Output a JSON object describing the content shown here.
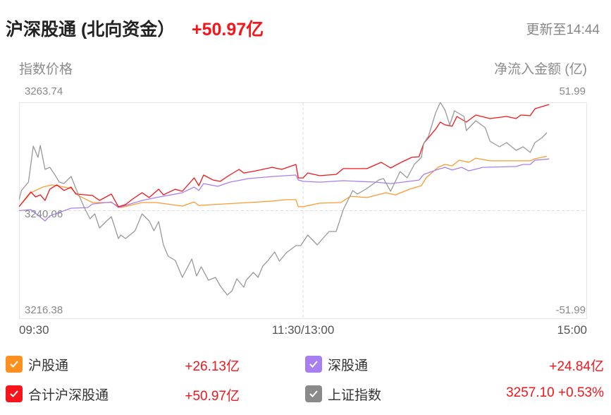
{
  "header": {
    "title": "沪深股通 (北向资金）",
    "value": "+50.97亿",
    "update": "更新至14:44"
  },
  "chart_data": {
    "type": "line",
    "left_axis_title": "指数价格",
    "right_axis_title": "净流入金额 (亿)",
    "left_ticks": [
      "3263.74",
      "3240.06",
      "3216.38"
    ],
    "right_ticks": [
      "51.99",
      "-51.99"
    ],
    "x_ticks": [
      "09:30",
      "11:30/13:00",
      "15:00"
    ],
    "left_ylim": [
      3216.38,
      3263.74
    ],
    "right_ylim": [
      -51.99,
      51.99
    ],
    "x_sessions": [
      [
        "09:30",
        "11:30"
      ],
      [
        "13:00",
        "15:00"
      ]
    ],
    "grid": "center dashed lines",
    "series": [
      {
        "name": "沪股通",
        "axis": "right",
        "color": "#ff9a2e",
        "points": [
          [
            "09:30",
            1.9
          ],
          [
            "09:35",
            8.6
          ],
          [
            "09:40",
            11.3
          ],
          [
            "09:44",
            12.4
          ],
          [
            "09:52",
            10.7
          ],
          [
            "09:55",
            7.3
          ],
          [
            "10:01",
            3.9
          ],
          [
            "10:09",
            3.9
          ],
          [
            "10:13",
            1.5
          ],
          [
            "10:22",
            3.9
          ],
          [
            "10:28",
            3.9
          ],
          [
            "10:39",
            2.2
          ],
          [
            "10:44",
            4.2
          ],
          [
            "10:46",
            2.5
          ],
          [
            "10:52",
            2.9
          ],
          [
            "11:07",
            3.9
          ],
          [
            "11:17",
            4.6
          ],
          [
            "11:23",
            5.3
          ],
          [
            "11:27",
            5.3
          ],
          [
            "11:28",
            1.9
          ],
          [
            "13:00",
            1.9
          ],
          [
            "13:07",
            3.6
          ],
          [
            "13:16",
            3.9
          ],
          [
            "13:20",
            6.9
          ],
          [
            "13:27",
            6.3
          ],
          [
            "13:35",
            8.6
          ],
          [
            "13:39",
            7.6
          ],
          [
            "13:45",
            10.3
          ],
          [
            "13:50",
            12.0
          ],
          [
            "13:52",
            15.7
          ],
          [
            "13:57",
            20.8
          ],
          [
            "14:00",
            22.2
          ],
          [
            "14:03",
            21.5
          ],
          [
            "14:06",
            24.2
          ],
          [
            "14:10",
            23.2
          ],
          [
            "14:13",
            25.2
          ],
          [
            "14:19",
            23.9
          ],
          [
            "14:30",
            23.9
          ],
          [
            "14:36",
            23.9
          ],
          [
            "14:38",
            24.9
          ],
          [
            "14:43",
            26.13
          ]
        ]
      },
      {
        "name": "深股通",
        "axis": "right",
        "color": "#a77ff0",
        "points": [
          [
            "09:30",
            0
          ],
          [
            "09:35",
            0.5
          ],
          [
            "09:41",
            -4.9
          ],
          [
            "09:43",
            -2.5
          ],
          [
            "09:52",
            1.2
          ],
          [
            "09:59",
            1.5
          ],
          [
            "10:01",
            3.2
          ],
          [
            "10:09",
            4.2
          ],
          [
            "10:12",
            1.5
          ],
          [
            "10:22",
            4.9
          ],
          [
            "10:28",
            6.3
          ],
          [
            "10:39",
            8.6
          ],
          [
            "10:44",
            11.3
          ],
          [
            "10:46",
            9.7
          ],
          [
            "10:48",
            13.0
          ],
          [
            "10:54",
            11.7
          ],
          [
            "10:59",
            13.7
          ],
          [
            "11:07",
            15.4
          ],
          [
            "11:17",
            16.4
          ],
          [
            "11:27",
            17.1
          ],
          [
            "11:28",
            14.7
          ],
          [
            "13:00",
            14.1
          ],
          [
            "13:07",
            13.7
          ],
          [
            "13:17",
            14.4
          ],
          [
            "13:31",
            13.7
          ],
          [
            "13:37",
            13.0
          ],
          [
            "13:45",
            14.1
          ],
          [
            "13:49",
            14.7
          ],
          [
            "13:51",
            17.4
          ],
          [
            "13:57",
            19.8
          ],
          [
            "14:00",
            20.8
          ],
          [
            "14:03",
            19.5
          ],
          [
            "14:07",
            20.8
          ],
          [
            "14:10",
            19.1
          ],
          [
            "14:16",
            20.8
          ],
          [
            "14:30",
            21.2
          ],
          [
            "14:33",
            22.2
          ],
          [
            "14:36",
            22.2
          ],
          [
            "14:38",
            24.2
          ],
          [
            "14:44",
            24.84
          ]
        ]
      },
      {
        "name": "合计沪深股通",
        "axis": "right",
        "color": "#f5151b",
        "points": [
          [
            "09:30",
            1.9
          ],
          [
            "09:35",
            9.0
          ],
          [
            "09:37",
            6.6
          ],
          [
            "09:39",
            7.6
          ],
          [
            "09:41",
            4.9
          ],
          [
            "09:43",
            10.3
          ],
          [
            "09:46",
            12.4
          ],
          [
            "09:49",
            9.7
          ],
          [
            "09:52",
            11.3
          ],
          [
            "09:54",
            8.0
          ],
          [
            "10:01",
            7.3
          ],
          [
            "10:04",
            4.9
          ],
          [
            "10:09",
            8.0
          ],
          [
            "10:12",
            1.9
          ],
          [
            "10:15",
            2.9
          ],
          [
            "10:18",
            5.6
          ],
          [
            "10:22",
            8.6
          ],
          [
            "10:25",
            6.3
          ],
          [
            "10:29",
            10.3
          ],
          [
            "10:31",
            7.6
          ],
          [
            "10:36",
            10.3
          ],
          [
            "10:39",
            9.3
          ],
          [
            "10:44",
            15.7
          ],
          [
            "10:46",
            12.0
          ],
          [
            "10:48",
            17.1
          ],
          [
            "10:52",
            14.7
          ],
          [
            "10:55",
            14.1
          ],
          [
            "10:59",
            17.1
          ],
          [
            "11:03",
            19.8
          ],
          [
            "11:05",
            18.1
          ],
          [
            "11:10",
            19.1
          ],
          [
            "11:17",
            20.8
          ],
          [
            "11:21",
            19.8
          ],
          [
            "11:27",
            22.2
          ],
          [
            "11:28",
            15.7
          ],
          [
            "13:00",
            15.7
          ],
          [
            "13:02",
            18.1
          ],
          [
            "13:07",
            16.8
          ],
          [
            "13:14",
            17.4
          ],
          [
            "13:17",
            20.2
          ],
          [
            "13:27",
            20.2
          ],
          [
            "13:33",
            23.2
          ],
          [
            "13:37",
            20.5
          ],
          [
            "13:42",
            23.5
          ],
          [
            "13:46",
            25.6
          ],
          [
            "13:49",
            25.9
          ],
          [
            "13:51",
            32.3
          ],
          [
            "13:56",
            39.1
          ],
          [
            "13:58",
            42.5
          ],
          [
            "14:00",
            41.2
          ],
          [
            "14:03",
            40.5
          ],
          [
            "14:05",
            45.2
          ],
          [
            "14:09",
            42.5
          ],
          [
            "14:13",
            45.9
          ],
          [
            "14:19",
            44.2
          ],
          [
            "14:26",
            45.2
          ],
          [
            "14:30",
            44.2
          ],
          [
            "14:32",
            45.9
          ],
          [
            "14:36",
            45.6
          ],
          [
            "14:38",
            48.9
          ],
          [
            "14:44",
            50.97
          ]
        ]
      },
      {
        "name": "上证指数",
        "axis": "left",
        "color": "#999999",
        "points": [
          [
            "09:30",
            3242.45
          ],
          [
            "09:31",
            3244.46
          ],
          [
            "09:34",
            3246.31
          ],
          [
            "09:36",
            3254.18
          ],
          [
            "09:38",
            3251.71
          ],
          [
            "09:39",
            3254.33
          ],
          [
            "09:41",
            3249.09
          ],
          [
            "09:43",
            3249.55
          ],
          [
            "09:45",
            3248.01
          ],
          [
            "09:47",
            3246.31
          ],
          [
            "09:49",
            3246.0
          ],
          [
            "09:52",
            3247.54
          ],
          [
            "09:54",
            3244.92
          ],
          [
            "09:58",
            3240.29
          ],
          [
            "10:00",
            3238.28
          ],
          [
            "10:02",
            3239.36
          ],
          [
            "10:04",
            3236.28
          ],
          [
            "10:07",
            3237.82
          ],
          [
            "10:09",
            3238.75
          ],
          [
            "10:12",
            3233.96
          ],
          [
            "10:13",
            3234.74
          ],
          [
            "10:15",
            3233.96
          ],
          [
            "10:19",
            3235.66
          ],
          [
            "10:22",
            3239.36
          ],
          [
            "10:25",
            3237.82
          ],
          [
            "10:27",
            3235.66
          ],
          [
            "10:29",
            3237.67
          ],
          [
            "10:31",
            3232.58
          ],
          [
            "10:33",
            3230.11
          ],
          [
            "10:36",
            3229.18
          ],
          [
            "10:39",
            3225.48
          ],
          [
            "10:43",
            3229.49
          ],
          [
            "10:45",
            3225.79
          ],
          [
            "10:47",
            3227.79
          ],
          [
            "10:50",
            3224.86
          ],
          [
            "10:53",
            3225.48
          ],
          [
            "10:55",
            3223.63
          ],
          [
            "10:58",
            3221.62
          ],
          [
            "11:00",
            3222.55
          ],
          [
            "11:02",
            3225.17
          ],
          [
            "11:05",
            3223.32
          ],
          [
            "11:06",
            3224.86
          ],
          [
            "11:09",
            3226.56
          ],
          [
            "11:11",
            3225.48
          ],
          [
            "11:13",
            3227.95
          ],
          [
            "11:15",
            3229.03
          ],
          [
            "11:18",
            3231.03
          ],
          [
            "11:20",
            3229.03
          ],
          [
            "11:23",
            3230.88
          ],
          [
            "11:27",
            3232.42
          ],
          [
            "11:29",
            3232.42
          ],
          [
            "13:02",
            3234.74
          ],
          [
            "13:06",
            3232.58
          ],
          [
            "13:11",
            3235.51
          ],
          [
            "13:14",
            3235.51
          ],
          [
            "13:17",
            3240.29
          ],
          [
            "13:21",
            3244.46
          ],
          [
            "13:23",
            3243.69
          ],
          [
            "13:27",
            3244.92
          ],
          [
            "13:32",
            3246.77
          ],
          [
            "13:34",
            3247.08
          ],
          [
            "13:37",
            3244.3
          ],
          [
            "13:41",
            3248.62
          ],
          [
            "13:44",
            3247.24
          ],
          [
            "13:47",
            3250.17
          ],
          [
            "13:50",
            3251.71
          ],
          [
            "13:51",
            3254.79
          ],
          [
            "13:53",
            3256.34
          ],
          [
            "13:56",
            3261.43
          ],
          [
            "13:58",
            3263.74
          ],
          [
            "14:00",
            3262.05
          ],
          [
            "14:02",
            3258.81
          ],
          [
            "14:04",
            3261.89
          ],
          [
            "14:08",
            3260.66
          ],
          [
            "14:09",
            3257.57
          ],
          [
            "14:13",
            3259.73
          ],
          [
            "14:17",
            3258.19
          ],
          [
            "14:19",
            3255.26
          ],
          [
            "14:23",
            3254.02
          ],
          [
            "14:26",
            3254.95
          ],
          [
            "14:30",
            3253.25
          ],
          [
            "14:33",
            3254.02
          ],
          [
            "14:36",
            3252.79
          ],
          [
            "14:38",
            3254.95
          ],
          [
            "14:41",
            3256.03
          ],
          [
            "14:43",
            3257.1
          ]
        ]
      }
    ]
  },
  "legend": [
    {
      "label": "沪股通",
      "value": "+26.13亿",
      "color": "#ff8f1f",
      "checked": true
    },
    {
      "label": "深股通",
      "value": "+24.84亿",
      "color": "#a77ff0",
      "checked": true
    },
    {
      "label": "合计沪深股通",
      "value": "+50.97亿",
      "color": "#f5151b",
      "checked": true
    },
    {
      "label": "上证指数",
      "value": "3257.10 +0.53%",
      "color": "#8a8a8a",
      "checked": true
    }
  ]
}
